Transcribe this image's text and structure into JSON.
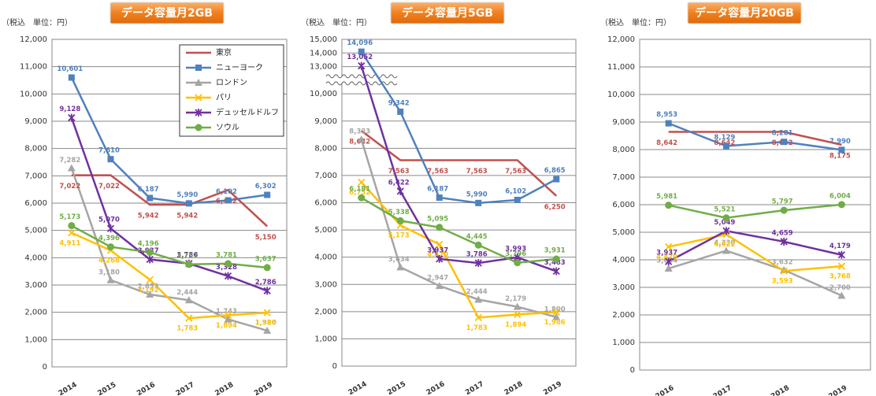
{
  "chart_data": [
    {
      "type": "line",
      "title": "データ容量月2GB",
      "unit_label": "（税込　単位：円）",
      "categories": [
        "2014",
        "2015",
        "2016",
        "2017",
        "2018",
        "2019"
      ],
      "ylim": [
        0,
        12000
      ],
      "yticks": [
        0,
        {
          "value": 1000,
          "label": "1,000"
        },
        {
          "value": 2000,
          "label": "2,000"
        },
        {
          "value": 3000,
          "label": "3,000"
        },
        {
          "value": 4000,
          "label": "4,000"
        },
        {
          "value": 5000,
          "label": "5,000"
        },
        {
          "value": 6000,
          "label": "6,000"
        },
        {
          "value": 7000,
          "label": "7,000"
        },
        {
          "value": 8000,
          "label": "8,000"
        },
        {
          "value": 9000,
          "label": "9,000"
        },
        {
          "value": 10000,
          "label": "10,000"
        },
        {
          "value": 11000,
          "label": "11,000"
        },
        {
          "value": 12000,
          "label": "12,000"
        }
      ],
      "grid": true,
      "legend": "upper right",
      "series": [
        {
          "name": "東京",
          "color": "#c0504d",
          "values": [
            7022,
            7022,
            5942,
            5942,
            6482,
            5150
          ],
          "value_labels": [
            "7,022",
            "7,022",
            "5,942",
            "5,942",
            "6,482",
            "5,150"
          ]
        },
        {
          "name": "ニューヨーク",
          "color": "#4f81bd",
          "marker": "square",
          "values": [
            10601,
            7610,
            6187,
            5990,
            6102,
            6302
          ],
          "value_labels": [
            "10,601",
            "7,610",
            "6,187",
            "5,990",
            "6,102",
            "6,302"
          ]
        },
        {
          "name": "ロンドン",
          "color": "#a5a5a5",
          "marker": "triangle",
          "values": [
            7282,
            3180,
            2653,
            2444,
            1743,
            1330
          ],
          "value_labels": [
            "7,282",
            "3,180",
            "2,653",
            "2,444",
            "1,743",
            "1,330"
          ]
        },
        {
          "name": "パリ",
          "color": "#ffc000",
          "marker": "x",
          "values": [
            4911,
            4268,
            3192,
            1783,
            1894,
            1986
          ],
          "value_labels": [
            "4,911",
            "4,268",
            "3,192",
            "1,783",
            "1,894",
            "1,986"
          ]
        },
        {
          "name": "デュッセルドルフ",
          "color": "#7030a0",
          "marker": "star",
          "values": [
            9128,
            5070,
            3937,
            3786,
            3328,
            2786
          ],
          "value_labels": [
            "9,128",
            "5,070",
            "3,937",
            "3,786",
            "3,328",
            "2,786"
          ]
        },
        {
          "name": "ソウル",
          "color": "#70ad47",
          "marker": "circle",
          "values": [
            5173,
            4396,
            4196,
            3757,
            3781,
            3637
          ],
          "value_labels": [
            "5,173",
            "4,396",
            "4,196",
            "3,757",
            "3,781",
            "3,637"
          ]
        }
      ]
    },
    {
      "type": "line",
      "title": "データ容量月5GB",
      "unit_label": "（税込　単位：円）",
      "categories": [
        "2014",
        "2015",
        "2016",
        "2017",
        "2018",
        "2019"
      ],
      "ylim": [
        0,
        15000
      ],
      "ybreak": [
        10000,
        13000
      ],
      "yticks": [
        0,
        {
          "value": 1000,
          "label": "1,000"
        },
        {
          "value": 2000,
          "label": "2,000"
        },
        {
          "value": 3000,
          "label": "3,000"
        },
        {
          "value": 4000,
          "label": "4,000"
        },
        {
          "value": 5000,
          "label": "5,000"
        },
        {
          "value": 6000,
          "label": "6,000"
        },
        {
          "value": 7000,
          "label": "7,000"
        },
        {
          "value": 8000,
          "label": "8,000"
        },
        {
          "value": 9000,
          "label": "9,000"
        },
        {
          "value": 10000,
          "label": "10,000"
        },
        {
          "value": 13000,
          "label": "13,000"
        },
        {
          "value": 14000,
          "label": "14,000"
        },
        {
          "value": 15000,
          "label": "15,000"
        }
      ],
      "grid": true,
      "series": [
        {
          "color": "#c0504d",
          "values": [
            8642,
            7563,
            7563,
            7563,
            7563,
            6250
          ],
          "value_labels": [
            "8,642",
            "7,563",
            "7,563",
            "7,563",
            "7,563",
            "6,250"
          ]
        },
        {
          "color": "#4f81bd",
          "marker": "square",
          "values": [
            14096,
            9342,
            6187,
            5990,
            6102,
            6865
          ],
          "value_labels": [
            "14,096",
            "9,342",
            "6,187",
            "5,990",
            "6,102",
            "6,865"
          ]
        },
        {
          "color": "#a5a5a5",
          "marker": "triangle",
          "values": [
            8323,
            3634,
            2947,
            2444,
            2179,
            1800
          ],
          "value_labels": [
            "8,323",
            "3,634",
            "2,947",
            "2,444",
            "2,179",
            "1,800"
          ]
        },
        {
          "color": "#ffc000",
          "marker": "x",
          "values": [
            6752,
            5173,
            4470,
            1783,
            1894,
            1986
          ],
          "value_labels": [
            "6,752",
            "5,173",
            "4,470",
            "1,783",
            "1,894",
            "1,986"
          ]
        },
        {
          "color": "#7030a0",
          "marker": "star",
          "values": [
            13052,
            6422,
            3937,
            3786,
            3993,
            3483
          ],
          "value_labels": [
            "13,052",
            "6,422",
            "3,937",
            "3,786",
            "3,993",
            "3,483"
          ]
        },
        {
          "color": "#70ad47",
          "marker": "circle",
          "values": [
            6181,
            5338,
            5095,
            4445,
            3796,
            3931
          ],
          "value_labels": [
            "6,181",
            "5,338",
            "5,095",
            "4,445",
            "3,796",
            "3,931"
          ]
        }
      ]
    },
    {
      "type": "line",
      "title": "データ容量月20GB",
      "unit_label": "（税込　単位：円）",
      "categories": [
        "2016",
        "2017",
        "2018",
        "2019"
      ],
      "ylim": [
        0,
        12000
      ],
      "yticks": [
        0,
        {
          "value": 1000,
          "label": "1,000"
        },
        {
          "value": 2000,
          "label": "2,000"
        },
        {
          "value": 3000,
          "label": "3,000"
        },
        {
          "value": 4000,
          "label": "4,000"
        },
        {
          "value": 5000,
          "label": "5,000"
        },
        {
          "value": 6000,
          "label": "6,000"
        },
        {
          "value": 7000,
          "label": "7,000"
        },
        {
          "value": 8000,
          "label": "8,000"
        },
        {
          "value": 9000,
          "label": "9,000"
        },
        {
          "value": 10000,
          "label": "10,000"
        },
        {
          "value": 11000,
          "label": "11,000"
        },
        {
          "value": 12000,
          "label": "12,000"
        }
      ],
      "grid": true,
      "series": [
        {
          "color": "#c0504d",
          "values": [
            8642,
            8642,
            8642,
            8175
          ],
          "value_labels": [
            "8,642",
            "8,642",
            "8,642",
            "8,175"
          ]
        },
        {
          "color": "#4f81bd",
          "marker": "square",
          "values": [
            8953,
            8129,
            8281,
            7990
          ],
          "value_labels": [
            "8,953",
            "8,129",
            "8,281",
            "7,990"
          ]
        },
        {
          "color": "#a5a5a5",
          "marker": "triangle",
          "values": [
            3684,
            4330,
            3632,
            2700
          ],
          "value_labels": [
            "3,684",
            "4,330",
            "3,632",
            "2,700"
          ]
        },
        {
          "color": "#ffc000",
          "marker": "x",
          "values": [
            4470,
            4922,
            3593,
            3768
          ],
          "value_labels": [
            "4,470",
            "4,922",
            "3,593",
            "3,768"
          ]
        },
        {
          "color": "#7030a0",
          "marker": "star",
          "values": [
            3937,
            5049,
            4659,
            4179
          ],
          "value_labels": [
            "3,937",
            "5,049",
            "4,659",
            "4,179"
          ]
        },
        {
          "color": "#70ad47",
          "marker": "circle",
          "values": [
            5981,
            5521,
            5797,
            6004
          ],
          "value_labels": [
            "5,981",
            "5,521",
            "5,797",
            "6,004"
          ]
        }
      ]
    }
  ]
}
